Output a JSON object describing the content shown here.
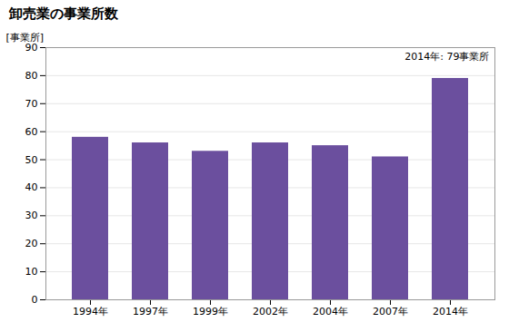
{
  "chart_data": {
    "type": "bar",
    "title": "卸売業の事業所数",
    "ylabel": "[事業所]",
    "annotation": "2014年: 79事業所",
    "categories": [
      "1994年",
      "1997年",
      "1999年",
      "2002年",
      "2004年",
      "2007年",
      "2014年"
    ],
    "values": [
      58,
      56,
      53,
      56,
      55,
      51,
      79
    ],
    "color": "#6b4f9e",
    "ylim": [
      0,
      90
    ],
    "yticks": [
      0,
      10,
      20,
      30,
      40,
      50,
      60,
      70,
      80,
      90
    ],
    "grid": true
  }
}
